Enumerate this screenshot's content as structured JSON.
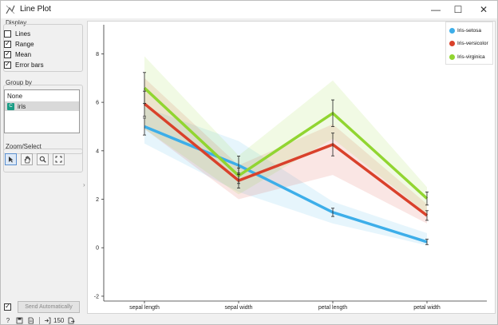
{
  "window": {
    "title": "Line Plot",
    "minimize": "—",
    "maximize": "☐",
    "close": "✕"
  },
  "sidebar": {
    "display": {
      "title": "Display",
      "options": [
        {
          "label": "Lines",
          "checked": false
        },
        {
          "label": "Range",
          "checked": true
        },
        {
          "label": "Mean",
          "checked": true
        },
        {
          "label": "Error bars",
          "checked": true
        }
      ]
    },
    "group_by": {
      "title": "Group by",
      "items": [
        {
          "label": "None",
          "badge": ""
        },
        {
          "label": "iris",
          "badge": "C"
        }
      ],
      "selected": "iris"
    },
    "zoom_select": {
      "title": "Zoom/Select"
    },
    "send_auto": {
      "label": "Send Automatically",
      "checked": true
    }
  },
  "statusbar": {
    "count": "150"
  },
  "chart_data": {
    "type": "line",
    "categories": [
      "sepal length",
      "sepal width",
      "petal length",
      "petal width"
    ],
    "ylim": [
      -2.2,
      9.2
    ],
    "yticks": [
      -2,
      0,
      2,
      4,
      6,
      8
    ],
    "series": [
      {
        "name": "Iris-setosa",
        "color": "#3daee9",
        "mean": [
          5.0,
          3.4,
          1.46,
          0.24
        ],
        "err": [
          0.35,
          0.38,
          0.17,
          0.11
        ],
        "min": [
          4.3,
          2.3,
          1.0,
          0.1
        ],
        "max": [
          5.8,
          4.4,
          1.9,
          0.6
        ]
      },
      {
        "name": "Iris-versicolor",
        "color": "#d9412b",
        "mean": [
          5.94,
          2.77,
          4.26,
          1.33
        ],
        "err": [
          0.52,
          0.31,
          0.47,
          0.2
        ],
        "min": [
          4.9,
          2.0,
          3.0,
          1.0
        ],
        "max": [
          7.0,
          3.4,
          5.1,
          1.8
        ]
      },
      {
        "name": "Iris-virginica",
        "color": "#91d531",
        "mean": [
          6.59,
          2.97,
          5.55,
          2.03
        ],
        "err": [
          0.64,
          0.32,
          0.55,
          0.27
        ],
        "min": [
          4.9,
          2.2,
          4.5,
          1.4
        ],
        "max": [
          7.9,
          3.8,
          6.9,
          2.5
        ]
      }
    ]
  }
}
